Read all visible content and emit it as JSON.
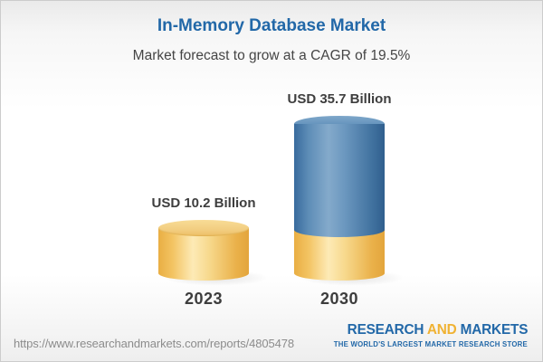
{
  "header": {
    "title": "In-Memory Database Market",
    "subtitle": "Market forecast to grow at a CAGR of 19.5%"
  },
  "chart_data": {
    "type": "bar",
    "variant": "3d-cylinder",
    "categories": [
      "2023",
      "2030"
    ],
    "values": [
      10.2,
      35.7
    ],
    "value_labels": [
      "USD 10.2 Billion",
      "USD 35.7 Billion"
    ],
    "unit": "USD Billion",
    "cagr_pct": 19.5,
    "title": "In-Memory Database Market",
    "note": "2030 column repeats the 2023 value as a gold base segment; growth above it is blue",
    "colors": {
      "gold": "#eeb44a",
      "blue": "#4478a8",
      "label_text": "#3e3e3e"
    }
  },
  "footer": {
    "url": "https://www.researchandmarkets.com/reports/4805478",
    "logo": {
      "part1": "RESEARCH",
      "part2": "AND",
      "part3": "MARKETS",
      "tagline": "THE WORLD'S LARGEST MARKET RESEARCH STORE"
    },
    "colors": {
      "blue": "#2268a8",
      "gold": "#f0b232"
    }
  }
}
